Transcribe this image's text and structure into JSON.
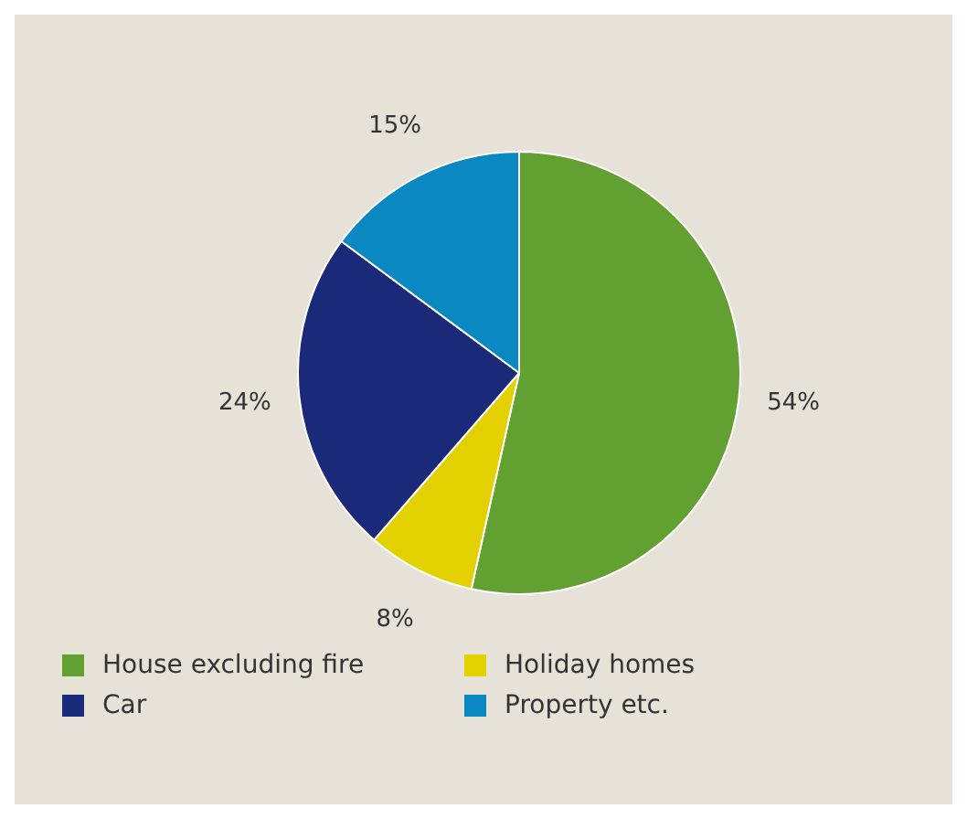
{
  "chart_data": {
    "type": "pie",
    "categories": [
      "House excluding fire",
      "Holiday homes",
      "Car",
      "Property etc."
    ],
    "values": [
      54,
      8,
      24,
      15
    ],
    "value_labels": [
      "54%",
      "8%",
      "24%",
      "15%"
    ],
    "colors": [
      "#62a032",
      "#e2d000",
      "#1a2a78",
      "#0a88c2"
    ],
    "legend": "bottom"
  }
}
